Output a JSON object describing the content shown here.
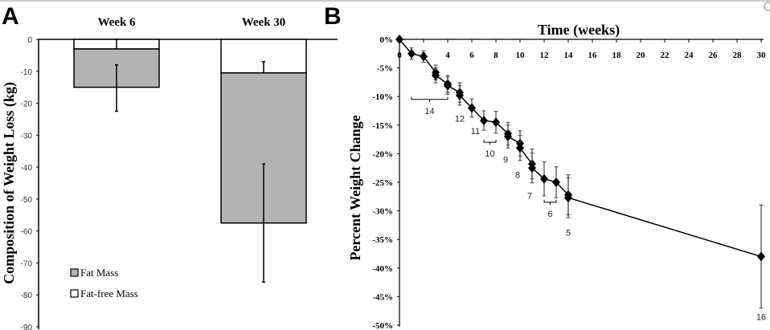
{
  "chart_data": [
    {
      "panel": "A",
      "type": "bar",
      "stacked": true,
      "categories": [
        "Week 6",
        "Week 30"
      ],
      "ylabel": "Composition of Weight Loss (kg)",
      "ylim": [
        -90,
        0
      ],
      "yticks": [
        0,
        -10,
        -20,
        -30,
        -40,
        -50,
        -60,
        -70,
        -80,
        -90
      ],
      "legend_position": "bottom-left",
      "series": [
        {
          "name": "Fat-free Mass",
          "color": "#ffffff",
          "values": [
            -3,
            -10.5
          ],
          "error_low": [
            -6,
            -14.5
          ],
          "error_high": [
            0,
            -7
          ]
        },
        {
          "name": "Fat Mass",
          "color": "#b3b3b3",
          "values": [
            -12,
            -47
          ],
          "error_low": [
            -22.5,
            -76
          ],
          "error_high": [
            -8,
            -39
          ]
        }
      ]
    },
    {
      "panel": "B",
      "type": "line",
      "title": "Time (weeks)",
      "ylabel": "Percent Weight Change",
      "xlim": [
        0,
        30
      ],
      "ylim": [
        -50,
        0
      ],
      "xticks": [
        0,
        2,
        4,
        6,
        8,
        10,
        12,
        14,
        16,
        18,
        20,
        22,
        24,
        26,
        28,
        30
      ],
      "yticks": [
        "0%",
        "-5%",
        "-10%",
        "-15%",
        "-20%",
        "-25%",
        "-30%",
        "-35%",
        "-40%",
        "-45%",
        "-50%"
      ],
      "points": [
        [
          0,
          0,
          0
        ],
        [
          1,
          -2.5,
          1
        ],
        [
          2,
          -3,
          1
        ],
        [
          3,
          -5.8,
          1.3
        ],
        [
          3,
          -6.3,
          1.3
        ],
        [
          4,
          -7.8,
          1.5
        ],
        [
          4,
          -8.1,
          1.5
        ],
        [
          5,
          -9.3,
          1.7
        ],
        [
          5,
          -9.8,
          1.7
        ],
        [
          6,
          -12,
          1.6
        ],
        [
          7,
          -14.2,
          1.7
        ],
        [
          8,
          -14.5,
          1.9
        ],
        [
          9,
          -16.5,
          2
        ],
        [
          9,
          -17,
          2
        ],
        [
          10,
          -18.2,
          2.2
        ],
        [
          10,
          -19,
          2.2
        ],
        [
          11,
          -21.8,
          2.6
        ],
        [
          11,
          -22.5,
          2.6
        ],
        [
          12,
          -24.4,
          3
        ],
        [
          13,
          -25,
          2.7
        ],
        [
          14,
          -27.2,
          3.5
        ],
        [
          14,
          -27.7,
          3.5
        ],
        [
          30,
          -38,
          9
        ]
      ],
      "annotations": [
        {
          "text": "14",
          "x_from": 1,
          "x_to": 4,
          "y": -10.5,
          "bracket": true
        },
        {
          "text": "12",
          "x": 5,
          "y": -13.8
        },
        {
          "text": "11",
          "x": 6.3,
          "y": -16
        },
        {
          "text": "10",
          "x_from": 7,
          "x_to": 8,
          "y": -18,
          "bracket": true
        },
        {
          "text": "9",
          "x": 8.8,
          "y": -21
        },
        {
          "text": "8",
          "x": 9.8,
          "y": -23.7
        },
        {
          "text": "7",
          "x": 10.8,
          "y": -27.3
        },
        {
          "text": "6",
          "x_from": 12,
          "x_to": 13,
          "y": -28.5,
          "bracket": true
        },
        {
          "text": "5",
          "x": 14,
          "y": -33.8
        },
        {
          "text": "16",
          "x": 30,
          "y": -48.5
        }
      ]
    }
  ],
  "labels": {
    "panel_a": "A",
    "panel_b": "B"
  }
}
